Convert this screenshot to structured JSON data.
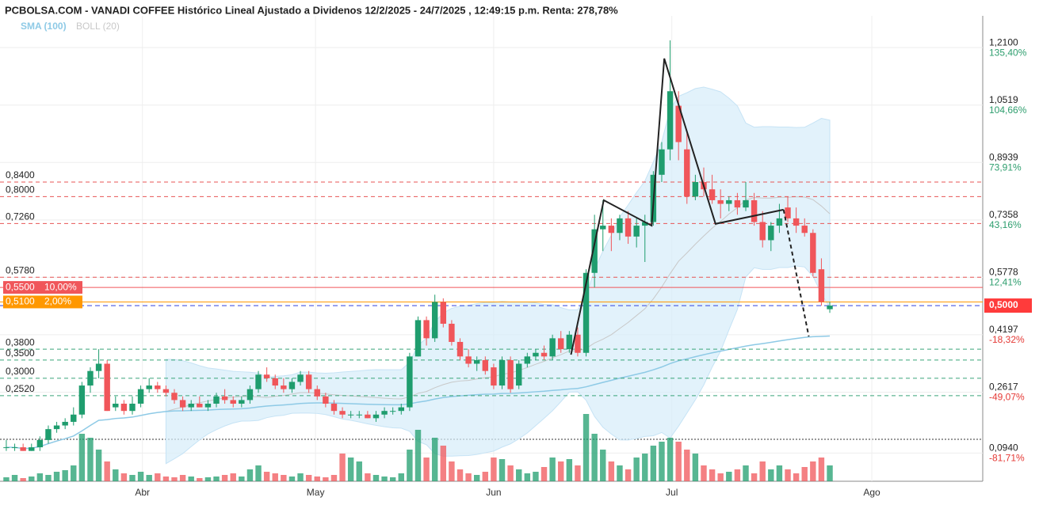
{
  "chart_data": {
    "type": "candlestick",
    "title": "PCBOLSA.COM - VANADI COFFEE Histórico Lineal Ajustado a Dividenos 12/2/2025 - 24/7/2025 , 12:49:15 p.m. Renta: 278,78%",
    "indicators": [
      {
        "name": "SMA (100)",
        "color": "#8ecae6"
      },
      {
        "name": "BOLL (20)",
        "color": "#c8c8c8"
      }
    ],
    "up_color": "#1f9d6e",
    "down_color": "#f0565a",
    "open": [
      0.11,
      0.11,
      0.11,
      0.1,
      0.11,
      0.13,
      0.16,
      0.17,
      0.18,
      0.2,
      0.28,
      0.32,
      0.34,
      0.22,
      0.23,
      0.21,
      0.23,
      0.27,
      0.28,
      0.27,
      0.26,
      0.24,
      0.22,
      0.23,
      0.22,
      0.23,
      0.25,
      0.24,
      0.23,
      0.24,
      0.27,
      0.31,
      0.3,
      0.28,
      0.27,
      0.29,
      0.31,
      0.27,
      0.25,
      0.23,
      0.21,
      0.2,
      0.2,
      0.2,
      0.19,
      0.2,
      0.21,
      0.21,
      0.22,
      0.36,
      0.46,
      0.41,
      0.51,
      0.45,
      0.4,
      0.36,
      0.34,
      0.35,
      0.33,
      0.28,
      0.35,
      0.28,
      0.34,
      0.36,
      0.37,
      0.36,
      0.41,
      0.38,
      0.42,
      0.37,
      0.59,
      0.71,
      0.72,
      0.7,
      0.74,
      0.69,
      0.72,
      0.73,
      0.86,
      0.93,
      1.05,
      0.93,
      0.8,
      0.84,
      0.82,
      0.79,
      0.78,
      0.79,
      0.77,
      0.79,
      0.73,
      0.68,
      0.72,
      0.77,
      0.74,
      0.72,
      0.7,
      0.6,
      0.49
    ],
    "high": [
      0.13,
      0.12,
      0.12,
      0.12,
      0.14,
      0.17,
      0.18,
      0.19,
      0.22,
      0.29,
      0.33,
      0.38,
      0.35,
      0.25,
      0.24,
      0.25,
      0.28,
      0.3,
      0.29,
      0.28,
      0.27,
      0.25,
      0.24,
      0.25,
      0.24,
      0.26,
      0.27,
      0.25,
      0.25,
      0.28,
      0.32,
      0.33,
      0.31,
      0.3,
      0.3,
      0.32,
      0.32,
      0.28,
      0.26,
      0.24,
      0.22,
      0.21,
      0.21,
      0.21,
      0.21,
      0.22,
      0.22,
      0.23,
      0.37,
      0.47,
      0.47,
      0.53,
      0.52,
      0.46,
      0.41,
      0.38,
      0.36,
      0.36,
      0.34,
      0.36,
      0.36,
      0.35,
      0.37,
      0.38,
      0.39,
      0.42,
      0.43,
      0.43,
      0.44,
      0.6,
      0.75,
      0.79,
      0.74,
      0.75,
      0.76,
      0.74,
      0.75,
      0.87,
      0.95,
      1.23,
      1.09,
      0.98,
      0.86,
      0.88,
      0.86,
      0.82,
      0.8,
      0.81,
      0.84,
      0.81,
      0.76,
      0.73,
      0.78,
      0.8,
      0.77,
      0.74,
      0.71,
      0.63,
      0.51
    ],
    "low": [
      0.1,
      0.1,
      0.1,
      0.1,
      0.1,
      0.12,
      0.15,
      0.16,
      0.17,
      0.19,
      0.26,
      0.3,
      0.21,
      0.21,
      0.2,
      0.2,
      0.22,
      0.26,
      0.26,
      0.25,
      0.23,
      0.21,
      0.21,
      0.22,
      0.21,
      0.22,
      0.23,
      0.22,
      0.22,
      0.23,
      0.26,
      0.29,
      0.27,
      0.26,
      0.26,
      0.28,
      0.26,
      0.24,
      0.22,
      0.2,
      0.19,
      0.19,
      0.19,
      0.19,
      0.18,
      0.19,
      0.2,
      0.2,
      0.21,
      0.36,
      0.39,
      0.4,
      0.44,
      0.39,
      0.35,
      0.33,
      0.32,
      0.31,
      0.27,
      0.27,
      0.26,
      0.27,
      0.33,
      0.35,
      0.35,
      0.35,
      0.37,
      0.37,
      0.36,
      0.36,
      0.55,
      0.65,
      0.65,
      0.68,
      0.67,
      0.66,
      0.62,
      0.72,
      0.84,
      0.9,
      0.9,
      0.78,
      0.79,
      0.8,
      0.78,
      0.74,
      0.76,
      0.75,
      0.76,
      0.72,
      0.66,
      0.65,
      0.7,
      0.73,
      0.7,
      0.69,
      0.58,
      0.5,
      0.48
    ],
    "close": [
      0.11,
      0.11,
      0.1,
      0.11,
      0.13,
      0.16,
      0.17,
      0.18,
      0.2,
      0.28,
      0.32,
      0.34,
      0.21,
      0.23,
      0.21,
      0.23,
      0.27,
      0.28,
      0.27,
      0.26,
      0.24,
      0.22,
      0.23,
      0.22,
      0.23,
      0.25,
      0.24,
      0.23,
      0.24,
      0.27,
      0.31,
      0.3,
      0.28,
      0.27,
      0.29,
      0.31,
      0.27,
      0.25,
      0.23,
      0.21,
      0.2,
      0.2,
      0.2,
      0.19,
      0.2,
      0.21,
      0.21,
      0.22,
      0.36,
      0.46,
      0.41,
      0.51,
      0.45,
      0.4,
      0.36,
      0.34,
      0.35,
      0.32,
      0.28,
      0.35,
      0.27,
      0.34,
      0.36,
      0.37,
      0.36,
      0.41,
      0.38,
      0.42,
      0.37,
      0.59,
      0.71,
      0.72,
      0.7,
      0.74,
      0.69,
      0.72,
      0.73,
      0.86,
      0.93,
      1.09,
      0.95,
      0.8,
      0.84,
      0.82,
      0.79,
      0.78,
      0.79,
      0.77,
      0.79,
      0.73,
      0.68,
      0.72,
      0.74,
      0.74,
      0.72,
      0.7,
      0.59,
      0.51,
      0.5
    ],
    "volume": [
      5,
      8,
      4,
      6,
      10,
      8,
      12,
      14,
      20,
      60,
      55,
      40,
      25,
      15,
      10,
      8,
      12,
      8,
      10,
      6,
      5,
      8,
      6,
      4,
      5,
      6,
      8,
      10,
      6,
      15,
      20,
      12,
      10,
      8,
      6,
      10,
      8,
      6,
      5,
      8,
      35,
      30,
      25,
      10,
      8,
      6,
      5,
      10,
      40,
      65,
      30,
      55,
      45,
      25,
      15,
      10,
      8,
      12,
      30,
      28,
      20,
      15,
      10,
      12,
      18,
      30,
      25,
      28,
      20,
      85,
      60,
      40,
      25,
      20,
      15,
      30,
      35,
      45,
      50,
      55,
      50,
      40,
      35,
      20,
      15,
      10,
      12,
      15,
      20,
      10,
      25,
      15,
      20,
      15,
      10,
      18,
      25,
      30,
      20
    ],
    "xlim": [
      -0.75,
      116.2
    ],
    "xticks": [
      {
        "value": 16.2,
        "label": "Abr"
      },
      {
        "value": 36.8,
        "label": "May"
      },
      {
        "value": 58,
        "label": "Jun"
      },
      {
        "value": 79.2,
        "label": "Jul"
      },
      {
        "value": 103,
        "label": "Ago"
      }
    ],
    "ylim": [
      0.0165,
      1.2975
    ],
    "yticks": [
      {
        "value": 1.21,
        "label": "1,2100",
        "pct": "135,40%"
      },
      {
        "value": 1.0519,
        "label": "1,0519",
        "pct": "104,66%"
      },
      {
        "value": 0.8939,
        "label": "0,8939",
        "pct": "73,91%"
      },
      {
        "value": 0.7358,
        "label": "0,7358",
        "pct": "43,16%"
      },
      {
        "value": 0.5778,
        "label": "0,5778",
        "pct": "12,41%"
      },
      {
        "value": 0.4197,
        "label": "0,4197",
        "pct": "-18,32%"
      },
      {
        "value": 0.2617,
        "label": "0,2617",
        "pct": "-49,07%"
      },
      {
        "value": 0.094,
        "label": "0,0940",
        "pct": "-81,71%"
      }
    ],
    "levels": [
      {
        "value": 0.84,
        "label": "0,8400",
        "color": "#e85555",
        "style": "dashed"
      },
      {
        "value": 0.8,
        "label": "0,8000",
        "color": "#e85555",
        "style": "dashed"
      },
      {
        "value": 0.726,
        "label": "0,7260",
        "color": "#e85555",
        "style": "dashed"
      },
      {
        "value": 0.578,
        "label": "0,5780",
        "color": "#e85555",
        "style": "dashed"
      },
      {
        "value": 0.55,
        "label": "0,5500",
        "tag": "10,00%",
        "color": "#f0565a",
        "style": "solid"
      },
      {
        "value": 0.51,
        "label": "0,5100",
        "tag": "2,00%",
        "color": "#ff9800",
        "style": "solid"
      },
      {
        "value": 0.38,
        "label": "0,3800",
        "color": "#3aa57a",
        "style": "dashed"
      },
      {
        "value": 0.35,
        "label": "0,3500",
        "color": "#3aa57a",
        "style": "dashed"
      },
      {
        "value": 0.3,
        "label": "0,3000",
        "color": "#3aa57a",
        "style": "dashed"
      },
      {
        "value": 0.252,
        "label": "0,2520",
        "color": "#3aa57a",
        "style": "dashed"
      }
    ],
    "last": {
      "value": 0.5,
      "label": "0,5000",
      "color": "#ff3b3b"
    },
    "trendline": {
      "x": [
        67.2,
        71.1,
        76.8,
        78.3,
        84.4,
        92.5,
        95.5
      ],
      "y": [
        0.365,
        0.79,
        0.72,
        1.18,
        0.725,
        0.764,
        0.415
      ]
    }
  }
}
